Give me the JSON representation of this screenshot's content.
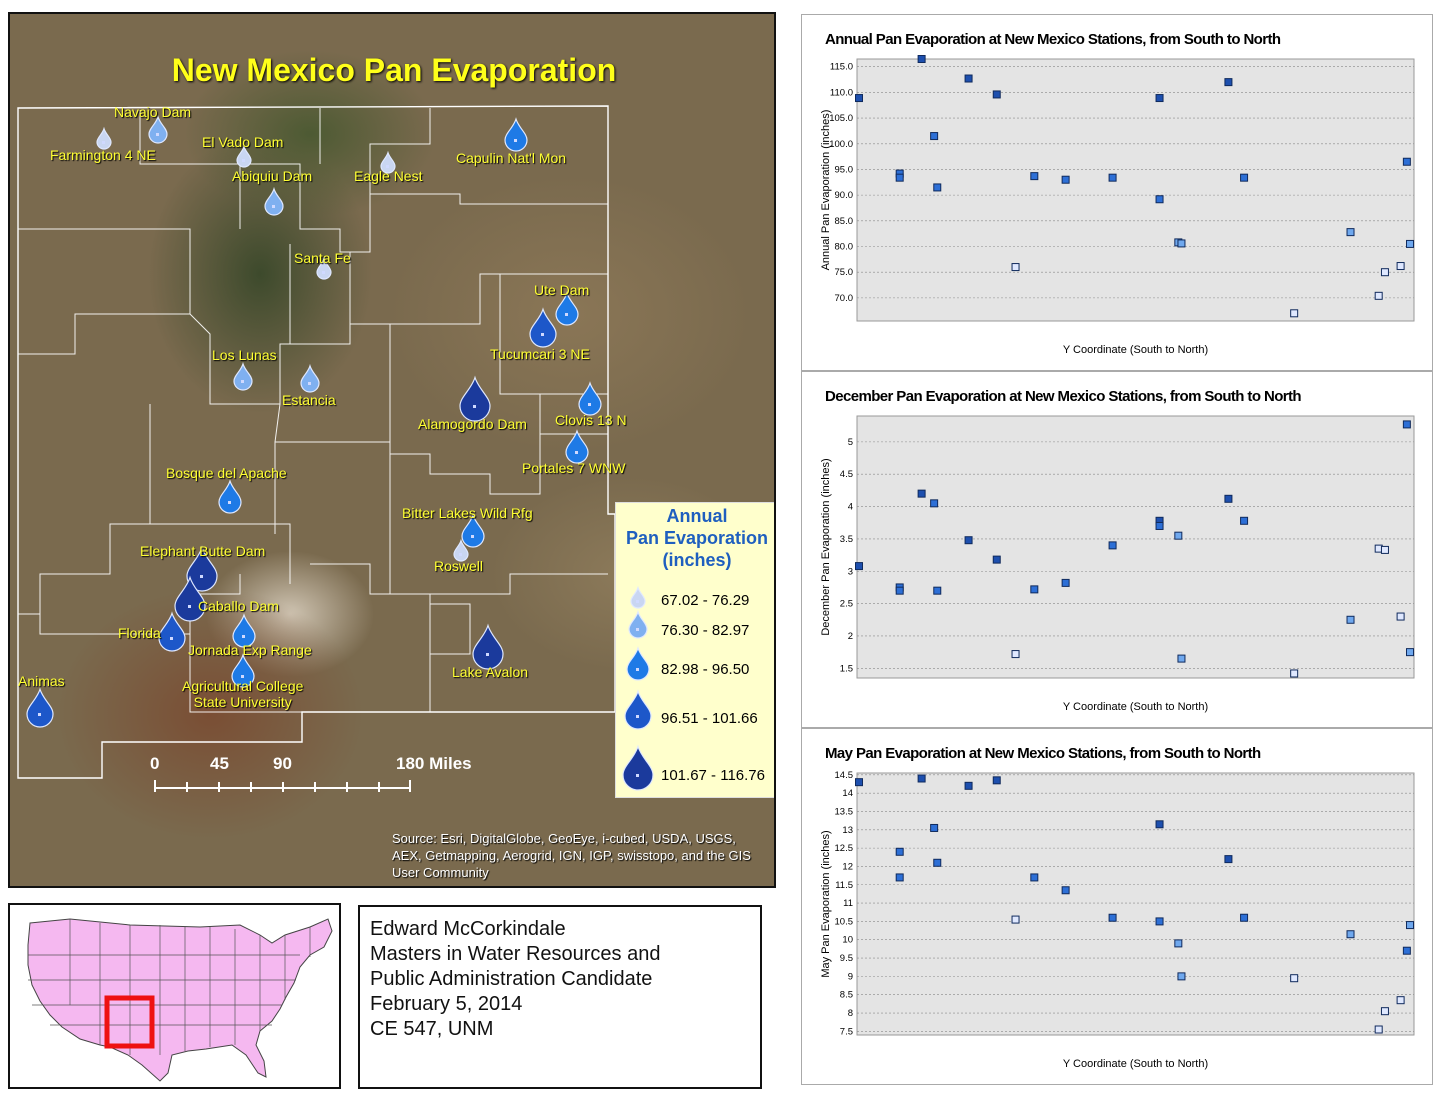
{
  "map": {
    "title": "New Mexico Pan Evaporation",
    "stations": [
      {
        "name": "Navajo Dam",
        "cls": 2
      },
      {
        "name": "Farmington 4 NE",
        "cls": 1
      },
      {
        "name": "El Vado Dam",
        "cls": 1
      },
      {
        "name": "Eagle Nest",
        "cls": 1
      },
      {
        "name": "Capulin Nat'l Mon",
        "cls": 3
      },
      {
        "name": "Abiquiu Dam",
        "cls": 2
      },
      {
        "name": "Santa Fe",
        "cls": 1
      },
      {
        "name": "Ute Dam",
        "cls": 3
      },
      {
        "name": "Tucumcari 3 NE",
        "cls": 4
      },
      {
        "name": "Los Lunas",
        "cls": 2
      },
      {
        "name": "Estancia",
        "cls": 2
      },
      {
        "name": "Alamogordo Dam",
        "cls": 5
      },
      {
        "name": "Clovis 13 N",
        "cls": 3
      },
      {
        "name": "Portales 7 WNW",
        "cls": 3
      },
      {
        "name": "Bosque del Apache",
        "cls": 3
      },
      {
        "name": "Bitter Lakes Wild Rfg",
        "cls": 3
      },
      {
        "name": "Roswell",
        "cls": 1
      },
      {
        "name": "Elephant Butte Dam",
        "cls": 5
      },
      {
        "name": "Caballo Dam",
        "cls": 5
      },
      {
        "name": "Florida",
        "cls": 4
      },
      {
        "name": "Jornada Exp Range",
        "cls": 3
      },
      {
        "name": "Agricultural College\nState University",
        "cls": 3
      },
      {
        "name": "Animas",
        "cls": 4
      },
      {
        "name": "Lake Avalon",
        "cls": 5
      }
    ],
    "scale_bar": {
      "labels": [
        "0",
        "45",
        "90",
        "180 Miles"
      ]
    },
    "source": "Source: Esri, DigitalGlobe, GeoEye, i-cubed, USDA, USGS, AEX, Getmapping, Aerogrid, IGN, IGP, swisstopo, and the GIS User Community",
    "legend": {
      "title_lines": [
        "Annual",
        "Pan Evaporation",
        "(inches)"
      ],
      "classes": [
        "67.02 - 76.29",
        "76.30 - 82.97",
        "82.98 - 96.50",
        "96.51 - 101.66",
        "101.67 - 116.76"
      ],
      "colors": [
        "#c9d6f2",
        "#7fb0f0",
        "#1e7ae6",
        "#1d57c9",
        "#1b3a9c"
      ]
    }
  },
  "inset": {
    "highlight_color": "#ee1111",
    "fill_color": "#f5b8f0"
  },
  "credit": {
    "lines": [
      "Edward McCorkindale",
      "Masters in Water Resources  and",
      "Public Administration Candidate",
      "February 5, 2014",
      "CE 547, UNM"
    ]
  },
  "chart_data": [
    {
      "type": "scatter",
      "title": "Annual Pan Evaporation at New Mexico Stations, from South to North",
      "xlabel": "Y Coordinate (South to North)",
      "ylabel": "Annual Pan Evaporation (inches)",
      "ylim": [
        65.5,
        116.5
      ],
      "yticks": [
        70,
        75,
        80,
        85,
        90,
        95,
        100,
        105,
        110,
        115
      ],
      "ytick_labels": [
        "70.0",
        "75.0",
        "80.0",
        "85.0",
        "90.0",
        "95.0",
        "100.0",
        "105.0",
        "110.0",
        "115.0"
      ],
      "points": [
        [
          0,
          108.9,
          5
        ],
        [
          1.3,
          94.2,
          3
        ],
        [
          1.3,
          93.4,
          3
        ],
        [
          2.0,
          116.5,
          5
        ],
        [
          2.4,
          101.5,
          4
        ],
        [
          2.5,
          91.5,
          3
        ],
        [
          3.5,
          112.7,
          5
        ],
        [
          4.4,
          109.6,
          5
        ],
        [
          5.0,
          76.0,
          1
        ],
        [
          5.6,
          93.7,
          3
        ],
        [
          6.6,
          93.0,
          3
        ],
        [
          8.1,
          93.4,
          3
        ],
        [
          9.6,
          108.9,
          5
        ],
        [
          9.6,
          89.2,
          3
        ],
        [
          10.2,
          80.8,
          2
        ],
        [
          10.3,
          80.6,
          2
        ],
        [
          11.8,
          112.0,
          5
        ],
        [
          12.3,
          93.4,
          3
        ],
        [
          13.9,
          67.0,
          1
        ],
        [
          15.7,
          82.8,
          2
        ],
        [
          16.6,
          70.4,
          1
        ],
        [
          16.8,
          75.0,
          1
        ],
        [
          17.3,
          76.2,
          1
        ],
        [
          17.5,
          96.5,
          3
        ],
        [
          17.6,
          80.5,
          2
        ]
      ]
    },
    {
      "type": "scatter",
      "title": "December Pan Evaporation at New Mexico Stations, from South to North",
      "xlabel": "Y Coordinate (South to North)",
      "ylabel": "December Pan Evaporation (inches)",
      "ylim": [
        1.35,
        5.4
      ],
      "yticks": [
        1.5,
        2,
        2.5,
        3,
        3.5,
        4,
        4.5,
        5
      ],
      "ytick_labels": [
        "1.5",
        "2",
        "2.5",
        "3",
        "3.5",
        "4",
        "4.5",
        "5"
      ],
      "points": [
        [
          0,
          3.08,
          5
        ],
        [
          1.3,
          2.75,
          3
        ],
        [
          1.3,
          2.7,
          3
        ],
        [
          2.0,
          4.2,
          5
        ],
        [
          2.4,
          4.05,
          4
        ],
        [
          2.5,
          2.7,
          3
        ],
        [
          3.5,
          3.48,
          5
        ],
        [
          4.4,
          3.18,
          5
        ],
        [
          5.0,
          1.72,
          1
        ],
        [
          5.6,
          2.72,
          3
        ],
        [
          6.6,
          2.82,
          3
        ],
        [
          8.1,
          3.4,
          3
        ],
        [
          9.6,
          3.78,
          5
        ],
        [
          9.6,
          3.7,
          3
        ],
        [
          10.2,
          3.55,
          2
        ],
        [
          10.3,
          1.65,
          2
        ],
        [
          11.8,
          4.12,
          5
        ],
        [
          12.3,
          3.78,
          3
        ],
        [
          13.9,
          1.42,
          1
        ],
        [
          15.7,
          2.25,
          2
        ],
        [
          16.6,
          3.35,
          1
        ],
        [
          16.8,
          3.33,
          1
        ],
        [
          17.3,
          2.3,
          1
        ],
        [
          17.5,
          5.27,
          3
        ],
        [
          17.6,
          1.75,
          2
        ]
      ]
    },
    {
      "type": "scatter",
      "title": "May Pan Evaporation at New Mexico Stations, from South to North",
      "xlabel": "Y Coordinate (South to North)",
      "ylabel": "May Pan Evaporation (inches)",
      "ylim": [
        7.4,
        14.55
      ],
      "yticks": [
        7.5,
        8,
        8.5,
        9,
        9.5,
        10,
        10.5,
        11,
        11.5,
        12,
        12.5,
        13,
        13.5,
        14,
        14.5
      ],
      "ytick_labels": [
        "7.5",
        "8",
        "8.5",
        "9",
        "9.5",
        "10",
        "10.5",
        "11",
        "11.5",
        "12",
        "12.5",
        "13",
        "13.5",
        "14",
        "14.5"
      ],
      "points": [
        [
          0,
          14.3,
          5
        ],
        [
          1.3,
          12.4,
          3
        ],
        [
          1.3,
          11.7,
          3
        ],
        [
          2.0,
          14.4,
          5
        ],
        [
          2.4,
          13.05,
          4
        ],
        [
          2.5,
          12.1,
          3
        ],
        [
          3.5,
          14.2,
          5
        ],
        [
          4.4,
          14.35,
          5
        ],
        [
          5.0,
          10.55,
          1
        ],
        [
          5.6,
          11.7,
          3
        ],
        [
          6.6,
          11.35,
          3
        ],
        [
          8.1,
          10.6,
          3
        ],
        [
          9.6,
          13.15,
          5
        ],
        [
          9.6,
          10.5,
          3
        ],
        [
          10.2,
          9.9,
          2
        ],
        [
          10.3,
          9.0,
          2
        ],
        [
          11.8,
          12.2,
          5
        ],
        [
          12.3,
          10.6,
          3
        ],
        [
          13.9,
          8.95,
          1
        ],
        [
          15.7,
          10.15,
          2
        ],
        [
          16.6,
          7.55,
          1
        ],
        [
          16.8,
          8.05,
          1
        ],
        [
          17.3,
          8.35,
          1
        ],
        [
          17.5,
          9.7,
          3
        ],
        [
          17.6,
          10.4,
          2
        ]
      ]
    }
  ]
}
